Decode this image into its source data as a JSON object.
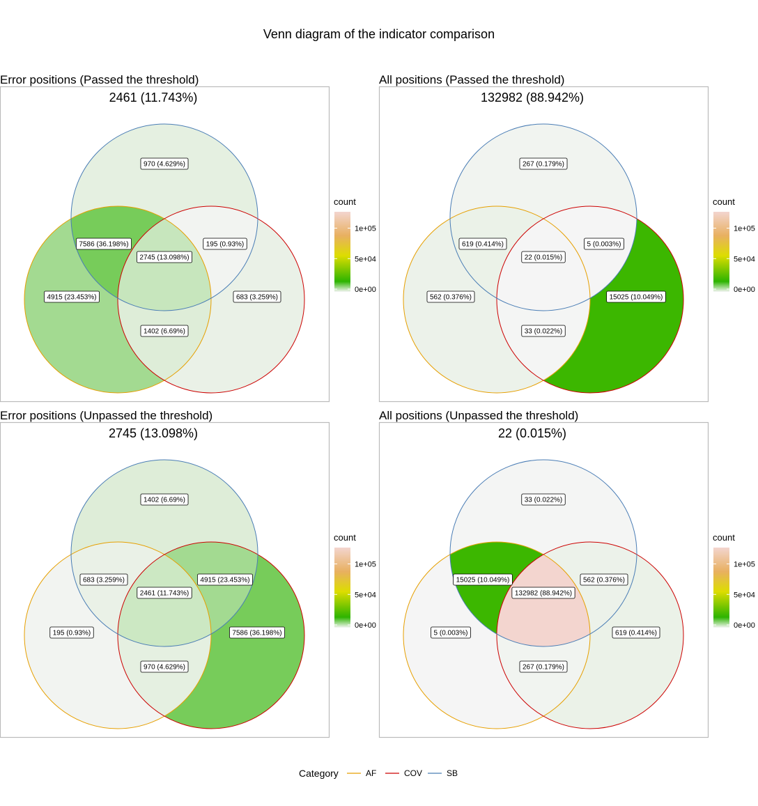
{
  "figure": {
    "title": "Venn diagram of the indicator comparison"
  },
  "chart_data": [
    {
      "type": "venn",
      "title": "Error positions (Passed the threshold)",
      "subtitle": "2461 (11.743%)",
      "sets": [
        "AF",
        "COV",
        "SB"
      ],
      "regions": [
        {
          "sets": [
            "SB"
          ],
          "count": 970,
          "label": "970 (4.629%)"
        },
        {
          "sets": [
            "AF",
            "SB"
          ],
          "count": 7586,
          "label": "7586 (36.198%)"
        },
        {
          "sets": [
            "COV",
            "SB"
          ],
          "count": 195,
          "label": "195 (0.93%)"
        },
        {
          "sets": [
            "AF",
            "COV",
            "SB"
          ],
          "count": 2745,
          "label": "2745 (13.098%)"
        },
        {
          "sets": [
            "AF"
          ],
          "count": 4915,
          "label": "4915 (23.453%)"
        },
        {
          "sets": [
            "COV"
          ],
          "count": 683,
          "label": "683 (3.259%)"
        },
        {
          "sets": [
            "AF",
            "COV"
          ],
          "count": 1402,
          "label": "1402 (6.69%)"
        }
      ],
      "legend": {
        "title": "count",
        "ticks": [
          "1e+05",
          "5e+04",
          "0e+00"
        ]
      }
    },
    {
      "type": "venn",
      "title": "All positions (Passed the threshold)",
      "subtitle": "132982 (88.942%)",
      "sets": [
        "AF",
        "COV",
        "SB"
      ],
      "regions": [
        {
          "sets": [
            "SB"
          ],
          "count": 267,
          "label": "267 (0.179%)"
        },
        {
          "sets": [
            "AF",
            "SB"
          ],
          "count": 619,
          "label": "619 (0.414%)"
        },
        {
          "sets": [
            "COV",
            "SB"
          ],
          "count": 5,
          "label": "5 (0.003%)"
        },
        {
          "sets": [
            "AF",
            "COV",
            "SB"
          ],
          "count": 22,
          "label": "22 (0.015%)"
        },
        {
          "sets": [
            "AF"
          ],
          "count": 562,
          "label": "562 (0.376%)"
        },
        {
          "sets": [
            "COV"
          ],
          "count": 15025,
          "label": "15025 (10.049%)"
        },
        {
          "sets": [
            "AF",
            "COV"
          ],
          "count": 33,
          "label": "33 (0.022%)"
        }
      ],
      "legend": {
        "title": "count",
        "ticks": [
          "1e+05",
          "5e+04",
          "0e+00"
        ]
      }
    },
    {
      "type": "venn",
      "title": "Error positions (Unpassed the threshold)",
      "subtitle": "2745 (13.098%)",
      "sets": [
        "AF",
        "COV",
        "SB"
      ],
      "regions": [
        {
          "sets": [
            "SB"
          ],
          "count": 1402,
          "label": "1402 (6.69%)"
        },
        {
          "sets": [
            "AF",
            "SB"
          ],
          "count": 683,
          "label": "683 (3.259%)"
        },
        {
          "sets": [
            "COV",
            "SB"
          ],
          "count": 4915,
          "label": "4915 (23.453%)"
        },
        {
          "sets": [
            "AF",
            "COV",
            "SB"
          ],
          "count": 2461,
          "label": "2461 (11.743%)"
        },
        {
          "sets": [
            "AF"
          ],
          "count": 195,
          "label": "195 (0.93%)"
        },
        {
          "sets": [
            "COV"
          ],
          "count": 7586,
          "label": "7586 (36.198%)"
        },
        {
          "sets": [
            "AF",
            "COV"
          ],
          "count": 970,
          "label": "970 (4.629%)"
        }
      ],
      "legend": {
        "title": "count",
        "ticks": [
          "1e+05",
          "5e+04",
          "0e+00"
        ]
      }
    },
    {
      "type": "venn",
      "title": "All positions (Unpassed the threshold)",
      "subtitle": "22 (0.015%)",
      "sets": [
        "AF",
        "COV",
        "SB"
      ],
      "regions": [
        {
          "sets": [
            "SB"
          ],
          "count": 33,
          "label": "33 (0.022%)"
        },
        {
          "sets": [
            "AF",
            "SB"
          ],
          "count": 15025,
          "label": "15025 (10.049%)"
        },
        {
          "sets": [
            "COV",
            "SB"
          ],
          "count": 562,
          "label": "562 (0.376%)"
        },
        {
          "sets": [
            "AF",
            "COV",
            "SB"
          ],
          "count": 132982,
          "label": "132982 (88.942%)"
        },
        {
          "sets": [
            "AF"
          ],
          "count": 5,
          "label": "5 (0.003%)"
        },
        {
          "sets": [
            "COV"
          ],
          "count": 619,
          "label": "619 (0.414%)"
        },
        {
          "sets": [
            "AF",
            "COV"
          ],
          "count": 267,
          "label": "267 (0.179%)"
        }
      ],
      "legend": {
        "title": "count",
        "ticks": [
          "1e+05",
          "5e+04",
          "0e+00"
        ]
      }
    }
  ],
  "category_legend": {
    "title": "Category",
    "items": [
      {
        "label": "AF",
        "color": "#E69F00"
      },
      {
        "label": "COV",
        "color": "#CC0000"
      },
      {
        "label": "SB",
        "color": "#4A7DB5"
      }
    ]
  },
  "colors": {
    "scale": [
      "#F5F5F5",
      "#2DB400",
      "#DDDD00",
      "#E8B060",
      "#F3D5CF"
    ],
    "panel_border": "#BBBBBB"
  }
}
